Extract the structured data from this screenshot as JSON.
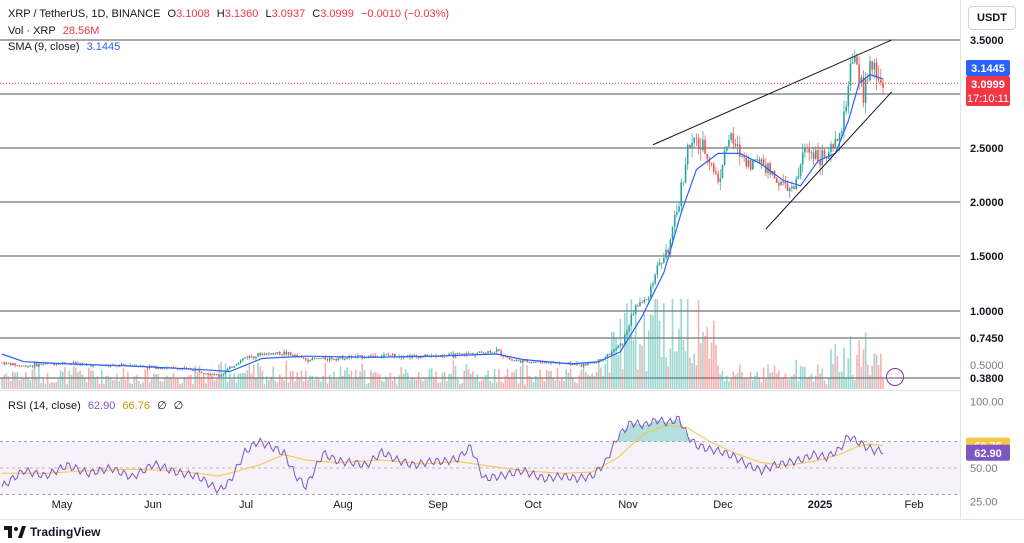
{
  "header": {
    "symbol_line": "XRP / TetherUS, 1D, BINANCE",
    "open_label": "O",
    "open": "3.1008",
    "high_label": "H",
    "high": "3.1360",
    "low_label": "L",
    "low": "3.0937",
    "close_label": "C",
    "close": "3.0999",
    "change": "−0.0010 (−0.03%)",
    "vol_label": "Vol · XRP",
    "vol_value": "28.56M",
    "sma_label": "SMA (9, close)",
    "sma_value": "3.1445",
    "rsi_label": "RSI (14, close)",
    "rsi_value": "62.90",
    "rsi_ma_value": "66.76",
    "rsi_extra1": "∅",
    "rsi_extra2": "∅"
  },
  "currency_button": "USDT",
  "badges": {
    "sma": "3.1445",
    "price": "3.0999",
    "countdown": "17:10:11",
    "rsi_ma": "66.76",
    "rsi": "62.90"
  },
  "branding": "TradingView",
  "colors": {
    "up": "#26a69a",
    "down": "#ef5350",
    "sma": "#2962ff",
    "rsi": "#7e57c2",
    "rsi_ma": "#f7c544",
    "level": "#131722",
    "last_price": "#f23645"
  },
  "chart_data": [
    {
      "type": "candlestick",
      "title": "XRP / TetherUS, 1D, BINANCE",
      "ylim": [
        0,
        3.9
      ],
      "x_ticks": [
        "May",
        "Jun",
        "Jul",
        "Aug",
        "Sep",
        "Oct",
        "Nov",
        "Dec",
        "2025",
        "Feb"
      ],
      "y_ticks": [
        "3.5000",
        "3.0000",
        "2.5000",
        "2.0000",
        "1.5000",
        "1.0000",
        "0.7450",
        "0.5000",
        "0.3800"
      ],
      "horizontal_levels": [
        3.5,
        3.0,
        2.5,
        2.0,
        1.5,
        1.0,
        0.745,
        0.38
      ],
      "last_price": 3.0999,
      "sma_last": 3.1445,
      "close_path": [
        [
          0,
          0.52
        ],
        [
          10,
          0.49
        ],
        [
          20,
          0.51
        ],
        [
          30,
          0.52
        ],
        [
          40,
          0.5
        ],
        [
          50,
          0.49
        ],
        [
          60,
          0.5
        ],
        [
          70,
          0.48
        ],
        [
          80,
          0.47
        ],
        [
          90,
          0.45
        ],
        [
          100,
          0.4
        ],
        [
          105,
          0.47
        ],
        [
          112,
          0.57
        ],
        [
          120,
          0.6
        ],
        [
          130,
          0.61
        ],
        [
          140,
          0.55
        ],
        [
          150,
          0.56
        ],
        [
          160,
          0.57
        ],
        [
          170,
          0.58
        ],
        [
          180,
          0.59
        ],
        [
          190,
          0.58
        ],
        [
          200,
          0.58
        ],
        [
          210,
          0.59
        ],
        [
          220,
          0.61
        ],
        [
          228,
          0.63
        ],
        [
          235,
          0.54
        ],
        [
          245,
          0.53
        ],
        [
          255,
          0.52
        ],
        [
          262,
          0.51
        ],
        [
          268,
          0.5
        ],
        [
          274,
          0.53
        ],
        [
          280,
          0.6
        ],
        [
          286,
          0.7
        ],
        [
          292,
          1.05
        ],
        [
          297,
          1.1
        ],
        [
          302,
          1.4
        ],
        [
          307,
          1.55
        ],
        [
          312,
          2.0
        ],
        [
          316,
          2.5
        ],
        [
          320,
          2.55
        ],
        [
          325,
          2.45
        ],
        [
          330,
          2.2
        ],
        [
          335,
          2.6
        ],
        [
          340,
          2.45
        ],
        [
          345,
          2.35
        ],
        [
          350,
          2.4
        ],
        [
          355,
          2.25
        ],
        [
          360,
          2.15
        ],
        [
          365,
          2.1
        ],
        [
          370,
          2.5
        ],
        [
          375,
          2.45
        ],
        [
          380,
          2.4
        ],
        [
          384,
          2.52
        ],
        [
          388,
          2.75
        ],
        [
          391,
          3.25
        ],
        [
          394,
          3.25
        ],
        [
          397,
          3.0
        ],
        [
          400,
          3.25
        ],
        [
          403,
          3.18
        ],
        [
          406,
          3.1
        ]
      ],
      "sma_path": [
        [
          0,
          0.6
        ],
        [
          10,
          0.53
        ],
        [
          30,
          0.51
        ],
        [
          60,
          0.49
        ],
        [
          90,
          0.46
        ],
        [
          105,
          0.44
        ],
        [
          120,
          0.56
        ],
        [
          140,
          0.58
        ],
        [
          170,
          0.57
        ],
        [
          200,
          0.58
        ],
        [
          228,
          0.6
        ],
        [
          240,
          0.55
        ],
        [
          262,
          0.51
        ],
        [
          275,
          0.53
        ],
        [
          285,
          0.62
        ],
        [
          295,
          0.95
        ],
        [
          305,
          1.35
        ],
        [
          313,
          1.9
        ],
        [
          320,
          2.3
        ],
        [
          330,
          2.45
        ],
        [
          340,
          2.45
        ],
        [
          350,
          2.35
        ],
        [
          360,
          2.2
        ],
        [
          368,
          2.15
        ],
        [
          376,
          2.38
        ],
        [
          384,
          2.45
        ],
        [
          390,
          2.75
        ],
        [
          395,
          3.1
        ],
        [
          400,
          3.18
        ],
        [
          406,
          3.14
        ]
      ],
      "trendlines": [
        {
          "name": "upper",
          "from": [
            300,
            2.53
          ],
          "to": [
            410,
            3.5
          ]
        },
        {
          "name": "lower",
          "from": [
            352,
            1.75
          ],
          "to": [
            410,
            3.02
          ]
        }
      ],
      "volume": {
        "name": "Vol · XRP",
        "last": "28.56M"
      }
    },
    {
      "type": "line",
      "title": "RSI (14, close)",
      "ylim": [
        17,
        107
      ],
      "y_ticks": [
        "100.00",
        "50.00",
        "25.00"
      ],
      "bands": [
        30,
        70
      ],
      "middle": 50,
      "series": [
        {
          "name": "RSI",
          "values": [
            [
              0,
              36
            ],
            [
              10,
              48
            ],
            [
              20,
              44
            ],
            [
              30,
              52
            ],
            [
              40,
              46
            ],
            [
              50,
              50
            ],
            [
              60,
              43
            ],
            [
              70,
              53
            ],
            [
              80,
              47
            ],
            [
              90,
              44
            ],
            [
              100,
              33
            ],
            [
              105,
              40
            ],
            [
              112,
              62
            ],
            [
              118,
              70
            ],
            [
              124,
              66
            ],
            [
              130,
              61
            ],
            [
              135,
              45
            ],
            [
              140,
              36
            ],
            [
              148,
              61
            ],
            [
              155,
              55
            ],
            [
              162,
              54
            ],
            [
              168,
              52
            ],
            [
              175,
              62
            ],
            [
              182,
              56
            ],
            [
              190,
              52
            ],
            [
              198,
              55
            ],
            [
              205,
              55
            ],
            [
              210,
              57
            ],
            [
              216,
              66
            ],
            [
              222,
              42
            ],
            [
              230,
              44
            ],
            [
              240,
              48
            ],
            [
              250,
              42
            ],
            [
              258,
              44
            ],
            [
              265,
              42
            ],
            [
              272,
              44
            ],
            [
              278,
              54
            ],
            [
              284,
              74
            ],
            [
              290,
              84
            ],
            [
              296,
              82
            ],
            [
              302,
              86
            ],
            [
              307,
              84
            ],
            [
              312,
              87
            ],
            [
              316,
              74
            ],
            [
              320,
              67
            ],
            [
              326,
              64
            ],
            [
              332,
              62
            ],
            [
              338,
              58
            ],
            [
              344,
              52
            ],
            [
              350,
              48
            ],
            [
              356,
              52
            ],
            [
              362,
              54
            ],
            [
              368,
              56
            ],
            [
              374,
              60
            ],
            [
              380,
              58
            ],
            [
              386,
              64
            ],
            [
              390,
              74
            ],
            [
              394,
              70
            ],
            [
              398,
              66
            ],
            [
              402,
              63
            ],
            [
              406,
              62.9
            ]
          ]
        },
        {
          "name": "RSI-based MA",
          "values": [
            [
              0,
              46
            ],
            [
              20,
              46
            ],
            [
              40,
              48
            ],
            [
              60,
              49
            ],
            [
              80,
              48
            ],
            [
              100,
              44
            ],
            [
              118,
              52
            ],
            [
              130,
              60
            ],
            [
              140,
              56
            ],
            [
              155,
              54
            ],
            [
              175,
              56
            ],
            [
              195,
              53
            ],
            [
              210,
              55
            ],
            [
              222,
              52
            ],
            [
              240,
              48
            ],
            [
              258,
              46
            ],
            [
              272,
              47
            ],
            [
              284,
              58
            ],
            [
              296,
              76
            ],
            [
              306,
              82
            ],
            [
              316,
              80
            ],
            [
              326,
              70
            ],
            [
              338,
              61
            ],
            [
              350,
              54
            ],
            [
              362,
              52
            ],
            [
              374,
              55
            ],
            [
              386,
              60
            ],
            [
              394,
              66
            ],
            [
              400,
              68
            ],
            [
              406,
              66.76
            ]
          ]
        }
      ]
    }
  ]
}
